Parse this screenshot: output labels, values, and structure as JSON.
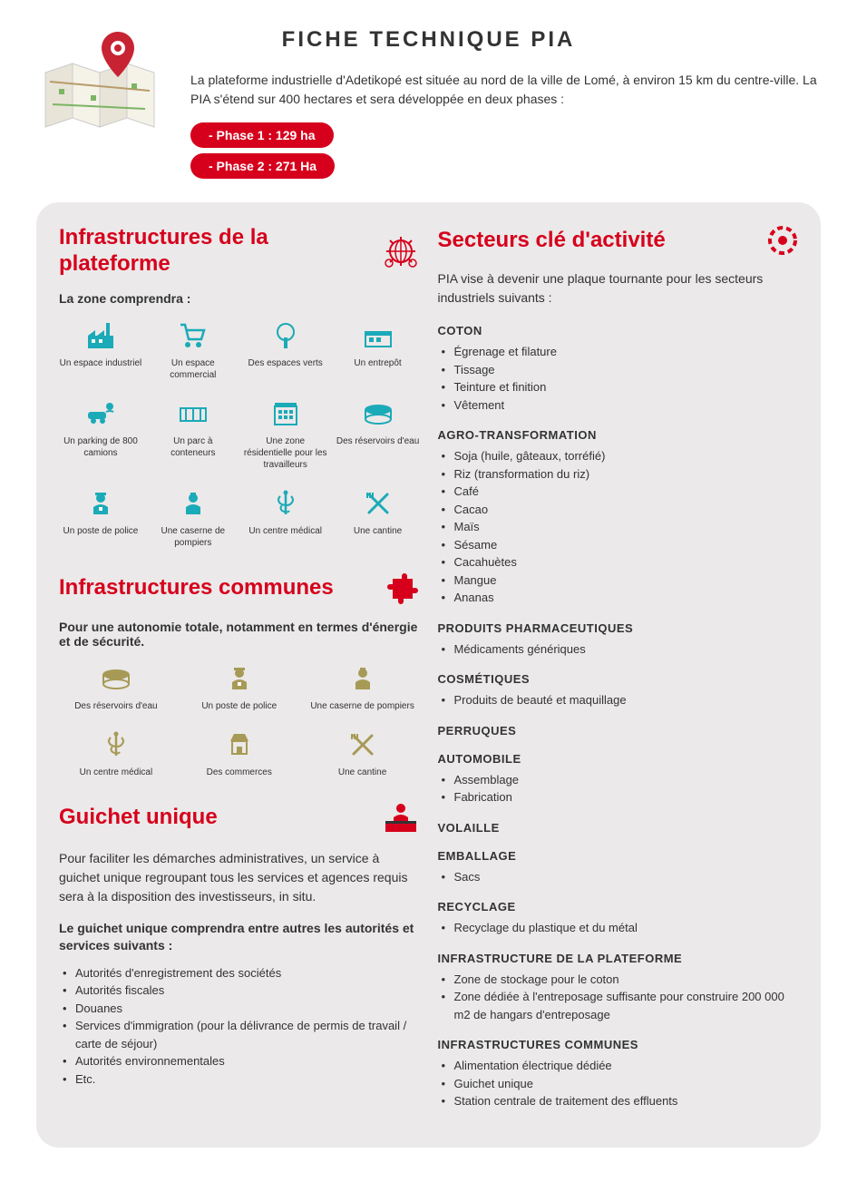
{
  "colors": {
    "primary_red": "#d6001c",
    "teal": "#1baab8",
    "olive": "#a79a56",
    "text": "#333333",
    "bg_panel": "#ebe9e9",
    "pin_red": "#c82333"
  },
  "header": {
    "title": "FICHE TECHNIQUE PIA",
    "intro": "La plateforme industrielle d'Adetikopé est située au nord de la ville de Lomé, à environ 15 km du centre-ville. La PIA s'étend sur 400 hectares et sera développée en deux phases :",
    "phase1": "- Phase 1 : 129 ha",
    "phase2": "- Phase 2 : 271 Ha"
  },
  "infra_platform": {
    "title": "Infrastructures de la plateforme",
    "subtitle": "La zone comprendra :",
    "items": [
      {
        "label": "Un espace industriel",
        "icon": "factory"
      },
      {
        "label": "Un espace commercial",
        "icon": "cart"
      },
      {
        "label": "Des espaces verts",
        "icon": "tree"
      },
      {
        "label": "Un entrepôt",
        "icon": "warehouse"
      },
      {
        "label": "Un parking de 800 camions",
        "icon": "parking"
      },
      {
        "label": "Un parc à conteneurs",
        "icon": "container"
      },
      {
        "label": "Une zone résidentielle pour les travailleurs",
        "icon": "residence"
      },
      {
        "label": "Des réservoirs d'eau",
        "icon": "tank"
      },
      {
        "label": "Un poste de police",
        "icon": "police"
      },
      {
        "label": "Une caserne de pompiers",
        "icon": "fire"
      },
      {
        "label": "Un centre médical",
        "icon": "medical"
      },
      {
        "label": "Une cantine",
        "icon": "canteen"
      }
    ]
  },
  "infra_common": {
    "title": "Infrastructures communes",
    "subtitle": "Pour une autonomie totale, notamment en termes d'énergie et de sécurité.",
    "items": [
      {
        "label": "Des réservoirs d'eau",
        "icon": "tank"
      },
      {
        "label": "Un poste de police",
        "icon": "police"
      },
      {
        "label": "Une caserne de pompiers",
        "icon": "fire"
      },
      {
        "label": "Un centre médical",
        "icon": "medical"
      },
      {
        "label": "Des commerces",
        "icon": "shop"
      },
      {
        "label": "Une cantine",
        "icon": "canteen"
      }
    ]
  },
  "guichet": {
    "title": "Guichet unique",
    "text": "Pour faciliter les démarches administratives, un service à guichet unique regroupant tous les services et agences requis sera à la disposition des investisseurs, in situ.",
    "subtitle": "Le guichet unique comprendra entre autres les autorités et services suivants :",
    "items": [
      "Autorités d'enregistrement des sociétés",
      "Autorités fiscales",
      "Douanes",
      "Services d'immigration (pour la délivrance de permis de travail / carte de séjour)",
      "Autorités environnementales",
      "Etc."
    ]
  },
  "sectors": {
    "title": "Secteurs clé d'activité",
    "intro": "PIA vise à devenir une plaque tournante pour les secteurs industriels suivants :",
    "groups": [
      {
        "heading": "COTON",
        "items": [
          "Égrenage et filature",
          "Tissage",
          "Teinture et finition",
          "Vêtement"
        ]
      },
      {
        "heading": "AGRO-TRANSFORMATION",
        "items": [
          "Soja (huile, gâteaux, torréfié)",
          "Riz (transformation du riz)",
          "Café",
          "Cacao",
          "Maïs",
          "Sésame",
          "Cacahuètes",
          "Mangue",
          "Ananas"
        ]
      },
      {
        "heading": "PRODUITS PHARMACEUTIQUES",
        "items": [
          "Médicaments génériques"
        ]
      },
      {
        "heading": "COSMÉTIQUES",
        "items": [
          "Produits de beauté et maquillage"
        ]
      },
      {
        "heading": "PERRUQUES",
        "items": []
      },
      {
        "heading": "AUTOMOBILE",
        "items": [
          "Assemblage",
          "Fabrication"
        ]
      },
      {
        "heading": "VOLAILLE",
        "items": []
      },
      {
        "heading": "EMBALLAGE",
        "items": [
          "Sacs"
        ]
      },
      {
        "heading": "RECYCLAGE",
        "items": [
          "Recyclage du plastique et du métal"
        ]
      },
      {
        "heading": "INFRASTRUCTURE DE LA PLATEFORME",
        "items": [
          "Zone de stockage pour le coton",
          "Zone dédiée à l'entreposage suffisante pour construire 200 000 m2 de hangars d'entreposage"
        ]
      },
      {
        "heading": "INFRASTRUCTURES COMMUNES",
        "items": [
          "Alimentation électrique dédiée",
          "Guichet unique",
          "Station centrale de traitement des effluents"
        ]
      }
    ]
  }
}
